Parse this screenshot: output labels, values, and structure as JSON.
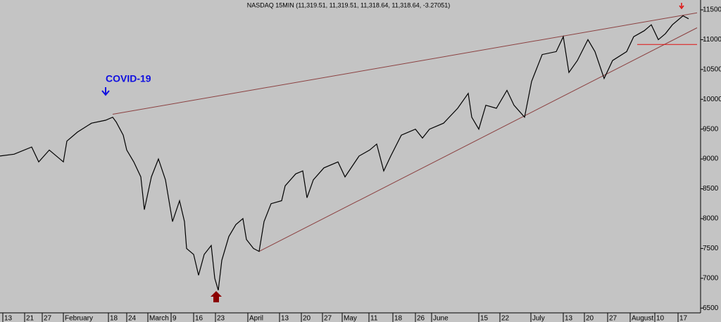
{
  "chart_data": {
    "type": "line",
    "title": "NASDAQ 15MIN (11,319.51, 11,319.51, 11,318.64, 11,318.64, -3.27051)",
    "annotation": "COVID-19",
    "xlim": [
      0,
      995
    ],
    "ylim": [
      6420,
      11665
    ],
    "yticks": [
      6500,
      7000,
      7500,
      8000,
      8500,
      9000,
      9500,
      10000,
      10500,
      11000,
      11500
    ],
    "xticks": [
      {
        "value": 4,
        "label": "13"
      },
      {
        "value": 35,
        "label": "21"
      },
      {
        "value": 60,
        "label": "27"
      },
      {
        "value": 90,
        "label": "February"
      },
      {
        "value": 154,
        "label": "18"
      },
      {
        "value": 180,
        "label": "24"
      },
      {
        "value": 210,
        "label": "March"
      },
      {
        "value": 243,
        "label": "9"
      },
      {
        "value": 275,
        "label": "16"
      },
      {
        "value": 306,
        "label": "23"
      },
      {
        "value": 352,
        "label": "April"
      },
      {
        "value": 397,
        "label": "13"
      },
      {
        "value": 428,
        "label": "20"
      },
      {
        "value": 458,
        "label": "27"
      },
      {
        "value": 486,
        "label": "May"
      },
      {
        "value": 524,
        "label": "11"
      },
      {
        "value": 558,
        "label": "18"
      },
      {
        "value": 590,
        "label": "26"
      },
      {
        "value": 613,
        "label": "June"
      },
      {
        "value": 680,
        "label": "15"
      },
      {
        "value": 710,
        "label": "22"
      },
      {
        "value": 754,
        "label": "July"
      },
      {
        "value": 800,
        "label": "13"
      },
      {
        "value": 830,
        "label": "20"
      },
      {
        "value": 863,
        "label": "27"
      },
      {
        "value": 895,
        "label": "August"
      },
      {
        "value": 930,
        "label": "10"
      },
      {
        "value": 963,
        "label": "17"
      }
    ],
    "series": [
      {
        "color": "#000000",
        "x": [
          0,
          20,
          45,
          55,
          70,
          90,
          95,
          110,
          130,
          150,
          160,
          165,
          175,
          180,
          190,
          200,
          205,
          215,
          225,
          235,
          245,
          255,
          262,
          265,
          275,
          282,
          290,
          300,
          305,
          310,
          315,
          325,
          335,
          345,
          350,
          360,
          368,
          375,
          385,
          400,
          405,
          420,
          430,
          436,
          445,
          460,
          480,
          490,
          510,
          525,
          535,
          545,
          555,
          570,
          590,
          600,
          610,
          630,
          650,
          665,
          670,
          680,
          690,
          705,
          720,
          730,
          745,
          755,
          770,
          790,
          800,
          808,
          820,
          835,
          845,
          858,
          870,
          890,
          900,
          915,
          925,
          935,
          945,
          955,
          970,
          978
        ],
        "values": [
          9050,
          9080,
          9200,
          8950,
          9150,
          8950,
          9300,
          9450,
          9600,
          9650,
          9700,
          9620,
          9400,
          9150,
          8950,
          8700,
          8150,
          8700,
          9000,
          8650,
          7950,
          8300,
          7950,
          7500,
          7400,
          7050,
          7400,
          7550,
          7000,
          6800,
          7300,
          7700,
          7900,
          8000,
          7650,
          7500,
          7450,
          7950,
          8250,
          8300,
          8550,
          8750,
          8800,
          8350,
          8650,
          8850,
          8950,
          8700,
          9050,
          9150,
          9250,
          8800,
          9050,
          9400,
          9500,
          9350,
          9500,
          9600,
          9850,
          10100,
          9700,
          9500,
          9900,
          9850,
          10150,
          9900,
          9700,
          10300,
          10750,
          10800,
          11050,
          10450,
          10650,
          11000,
          10800,
          10350,
          10650,
          10800,
          11050,
          11150,
          11250,
          11000,
          11100,
          11250,
          11400,
          11350
        ]
      }
    ],
    "trendlines": [
      {
        "color": "#8b4040",
        "x": [
          160,
          990
        ],
        "values": [
          9750,
          11450
        ]
      },
      {
        "color": "#8b4040",
        "x": [
          368,
          990
        ],
        "values": [
          7450,
          11200
        ]
      },
      {
        "color": "#e01010",
        "x": [
          905,
          990
        ],
        "values": [
          10920,
          10920
        ]
      }
    ]
  }
}
